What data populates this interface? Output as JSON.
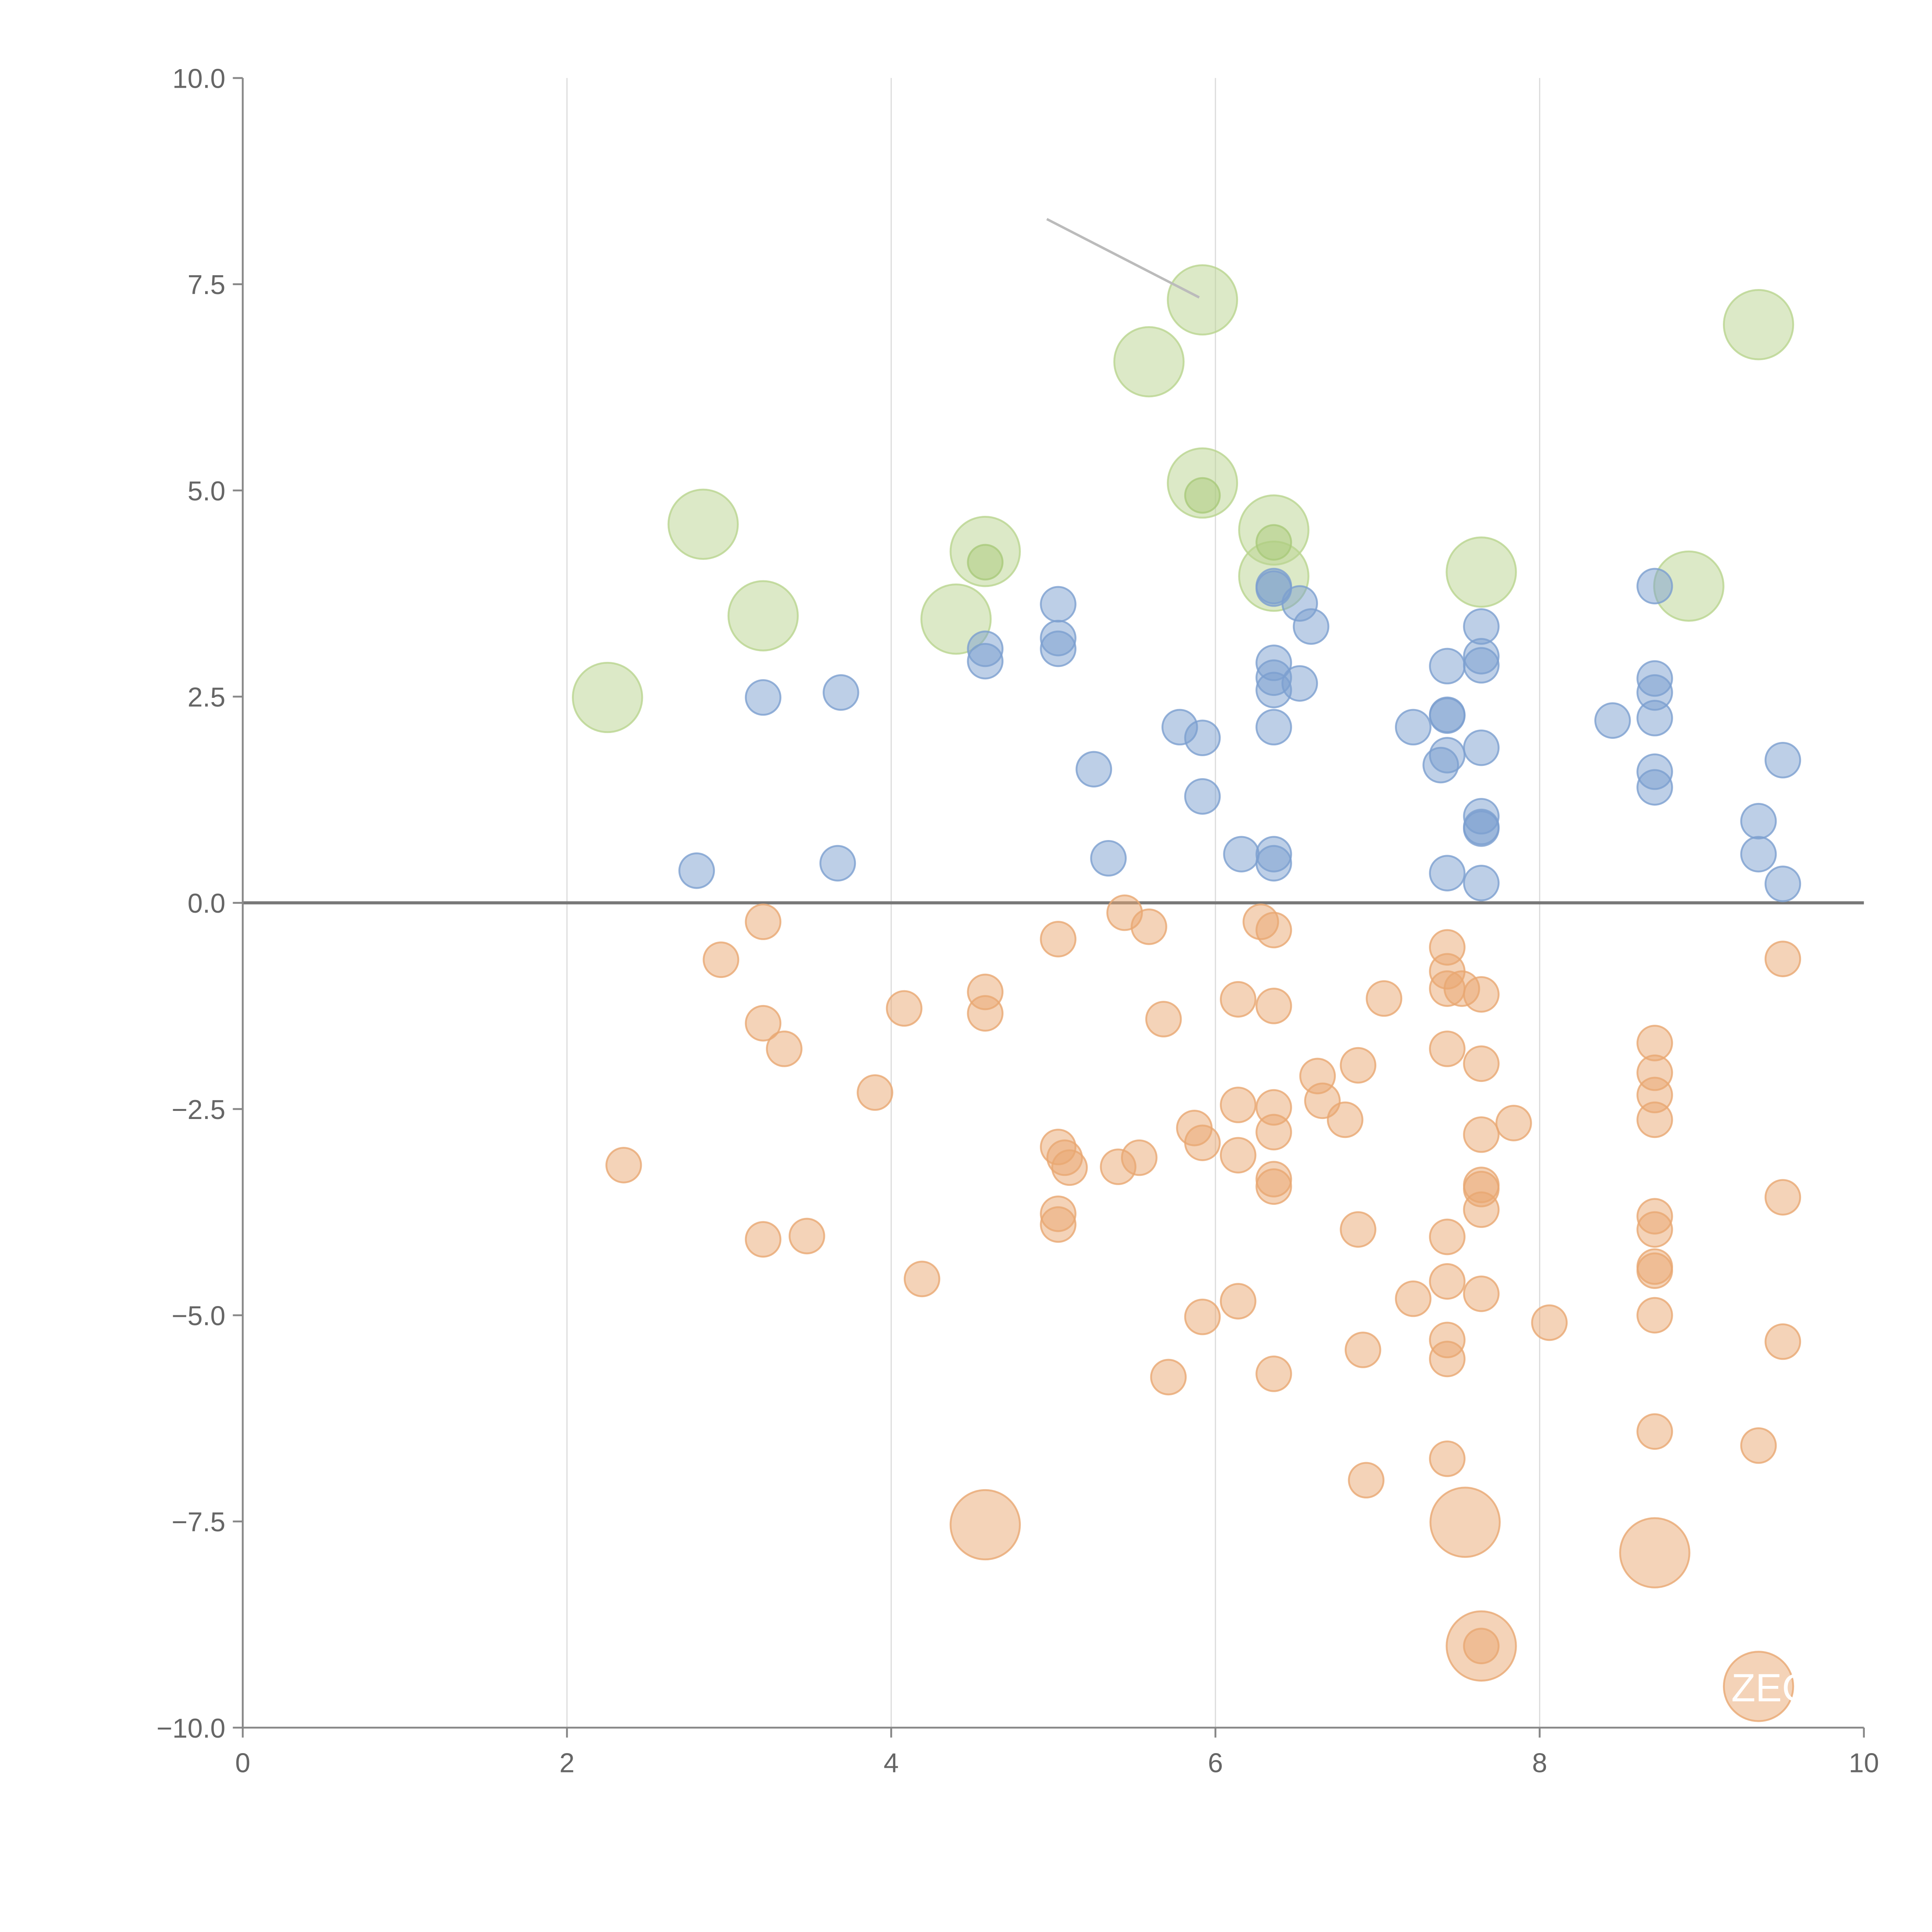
{
  "chart_data": {
    "type": "scatter",
    "title": "",
    "xlabel": "",
    "ylabel": "",
    "xlim": [
      0,
      10
    ],
    "ylim": [
      -10,
      10
    ],
    "xticks": [
      "0",
      "2",
      "4",
      "6",
      "8",
      "10"
    ],
    "xtick_values": [
      0,
      2,
      4,
      6,
      8,
      10
    ],
    "yticks": [
      "10.0",
      "7.5",
      "5.0",
      "2.5",
      "0.0",
      "−2.5",
      "−5.0",
      "−7.5",
      "−10.0"
    ],
    "ytick_values": [
      10,
      7.5,
      5,
      2.5,
      0,
      -2.5,
      -5,
      -7.5,
      -10
    ],
    "grid": "vertical",
    "zero_line": true,
    "colors": {
      "positive": "#7c9fd0",
      "negative": "#e9a772",
      "highlight": "#b9d48f"
    },
    "series": [
      {
        "name": "highlight",
        "color": "#b9d48f",
        "size": 2,
        "points": [
          [
            2.25,
            2.49
          ],
          [
            2.84,
            4.59
          ],
          [
            3.21,
            3.48
          ],
          [
            4.4,
            3.44
          ],
          [
            4.58,
            4.26
          ],
          [
            5.59,
            6.56
          ],
          [
            5.92,
            7.31
          ],
          [
            5.92,
            5.09
          ],
          [
            6.36,
            4.52
          ],
          [
            6.36,
            3.96
          ],
          [
            7.64,
            4.01
          ],
          [
            8.92,
            3.84
          ],
          [
            9.35,
            7.01
          ]
        ]
      },
      {
        "name": "highlight-small",
        "color": "#a9c97a",
        "size": 1,
        "points": [
          [
            4.58,
            4.13
          ],
          [
            5.92,
            4.94
          ],
          [
            6.36,
            4.37
          ]
        ]
      },
      {
        "name": "positive",
        "color": "#7c9fd0",
        "size": 1,
        "points": [
          [
            2.8,
            0.39
          ],
          [
            3.21,
            2.49
          ],
          [
            3.69,
            2.55
          ],
          [
            3.67,
            0.48
          ],
          [
            4.58,
            3.08
          ],
          [
            4.58,
            2.93
          ],
          [
            5.03,
            3.62
          ],
          [
            5.03,
            3.21
          ],
          [
            5.03,
            3.08
          ],
          [
            5.25,
            1.62
          ],
          [
            5.34,
            0.54
          ],
          [
            5.78,
            2.13
          ],
          [
            5.92,
            2.0
          ],
          [
            5.92,
            1.29
          ],
          [
            6.16,
            0.59
          ],
          [
            6.36,
            3.84
          ],
          [
            6.36,
            3.81
          ],
          [
            6.52,
            3.63
          ],
          [
            6.59,
            3.35
          ],
          [
            6.36,
            2.91
          ],
          [
            6.36,
            2.73
          ],
          [
            6.36,
            2.58
          ],
          [
            6.52,
            2.66
          ],
          [
            6.36,
            2.13
          ],
          [
            6.36,
            0.59
          ],
          [
            6.36,
            0.48
          ],
          [
            7.22,
            2.13
          ],
          [
            7.43,
            2.87
          ],
          [
            7.43,
            2.28
          ],
          [
            7.43,
            2.27
          ],
          [
            7.43,
            1.79
          ],
          [
            7.39,
            1.67
          ],
          [
            7.43,
            0.36
          ],
          [
            7.64,
            3.35
          ],
          [
            7.64,
            2.99
          ],
          [
            7.64,
            2.88
          ],
          [
            7.64,
            1.88
          ],
          [
            7.64,
            1.05
          ],
          [
            7.64,
            0.92
          ],
          [
            7.64,
            0.9
          ],
          [
            7.64,
            0.24
          ],
          [
            8.45,
            2.21
          ],
          [
            8.71,
            3.84
          ],
          [
            8.71,
            2.72
          ],
          [
            8.71,
            2.55
          ],
          [
            8.71,
            2.24
          ],
          [
            8.71,
            1.59
          ],
          [
            8.71,
            1.4
          ],
          [
            9.35,
            0.99
          ],
          [
            9.35,
            0.59
          ],
          [
            9.5,
            1.73
          ],
          [
            9.5,
            0.23
          ]
        ]
      },
      {
        "name": "negative",
        "color": "#e9a772",
        "size": 1,
        "points": [
          [
            2.35,
            -3.18
          ],
          [
            2.95,
            -0.69
          ],
          [
            3.21,
            -0.23
          ],
          [
            3.21,
            -1.46
          ],
          [
            3.21,
            -4.08
          ],
          [
            3.34,
            -1.77
          ],
          [
            3.48,
            -4.04
          ],
          [
            3.9,
            -2.3
          ],
          [
            4.08,
            -1.28
          ],
          [
            4.19,
            -4.56
          ],
          [
            4.58,
            -1.08
          ],
          [
            4.58,
            -1.34
          ],
          [
            5.03,
            -0.44
          ],
          [
            5.03,
            -2.96
          ],
          [
            5.03,
            -3.77
          ],
          [
            5.03,
            -3.9
          ],
          [
            5.07,
            -3.09
          ],
          [
            5.1,
            -3.21
          ],
          [
            5.4,
            -3.2
          ],
          [
            5.53,
            -3.09
          ],
          [
            5.44,
            -0.12
          ],
          [
            5.59,
            -0.29
          ],
          [
            5.68,
            -1.41
          ],
          [
            5.71,
            -5.75
          ],
          [
            5.87,
            -2.73
          ],
          [
            5.92,
            -2.91
          ],
          [
            5.92,
            -5.02
          ],
          [
            6.14,
            -1.17
          ],
          [
            6.14,
            -2.45
          ],
          [
            6.14,
            -3.06
          ],
          [
            6.14,
            -4.83
          ],
          [
            6.28,
            -0.23
          ],
          [
            6.36,
            -0.33
          ],
          [
            6.36,
            -1.25
          ],
          [
            6.36,
            -2.48
          ],
          [
            6.36,
            -2.78
          ],
          [
            6.36,
            -3.35
          ],
          [
            6.36,
            -3.44
          ],
          [
            6.36,
            -5.71
          ],
          [
            6.63,
            -2.1
          ],
          [
            6.66,
            -2.4
          ],
          [
            6.8,
            -2.63
          ],
          [
            6.88,
            -1.97
          ],
          [
            6.88,
            -3.96
          ],
          [
            6.91,
            -5.42
          ],
          [
            6.93,
            -7.0
          ],
          [
            7.04,
            -1.16
          ],
          [
            7.22,
            -4.8
          ],
          [
            7.43,
            -0.54
          ],
          [
            7.43,
            -0.83
          ],
          [
            7.43,
            -1.04
          ],
          [
            7.43,
            -1.77
          ],
          [
            7.43,
            -4.05
          ],
          [
            7.43,
            -4.59
          ],
          [
            7.43,
            -5.3
          ],
          [
            7.43,
            -5.53
          ],
          [
            7.43,
            -6.74
          ],
          [
            7.52,
            -1.04
          ],
          [
            7.64,
            -1.11
          ],
          [
            7.64,
            -1.95
          ],
          [
            7.64,
            -2.81
          ],
          [
            7.64,
            -3.42
          ],
          [
            7.64,
            -3.47
          ],
          [
            7.64,
            -3.72
          ],
          [
            7.64,
            -4.74
          ],
          [
            7.64,
            -9.01
          ],
          [
            7.84,
            -2.67
          ],
          [
            8.06,
            -5.09
          ],
          [
            8.71,
            -1.7
          ],
          [
            8.71,
            -2.06
          ],
          [
            8.71,
            -2.33
          ],
          [
            8.71,
            -2.63
          ],
          [
            8.71,
            -3.8
          ],
          [
            8.71,
            -3.96
          ],
          [
            8.71,
            -4.41
          ],
          [
            8.71,
            -4.46
          ],
          [
            8.71,
            -5.0
          ],
          [
            8.71,
            -6.41
          ],
          [
            9.35,
            -6.58
          ],
          [
            9.5,
            -0.68
          ],
          [
            9.5,
            -3.57
          ],
          [
            9.5,
            -5.32
          ]
        ]
      },
      {
        "name": "negative-large",
        "color": "#e9a772",
        "size": 2,
        "points": [
          [
            4.58,
            -7.54
          ],
          [
            7.54,
            -7.51
          ],
          [
            7.64,
            -9.01
          ],
          [
            8.71,
            -7.88
          ],
          [
            9.35,
            -9.5
          ]
        ]
      }
    ],
    "annotations": [
      {
        "text": "ZEC",
        "x": 9.35,
        "y": -9.5
      }
    ],
    "connector": {
      "from": [
        4.96,
        8.29
      ],
      "to": [
        5.9,
        7.34
      ]
    }
  }
}
